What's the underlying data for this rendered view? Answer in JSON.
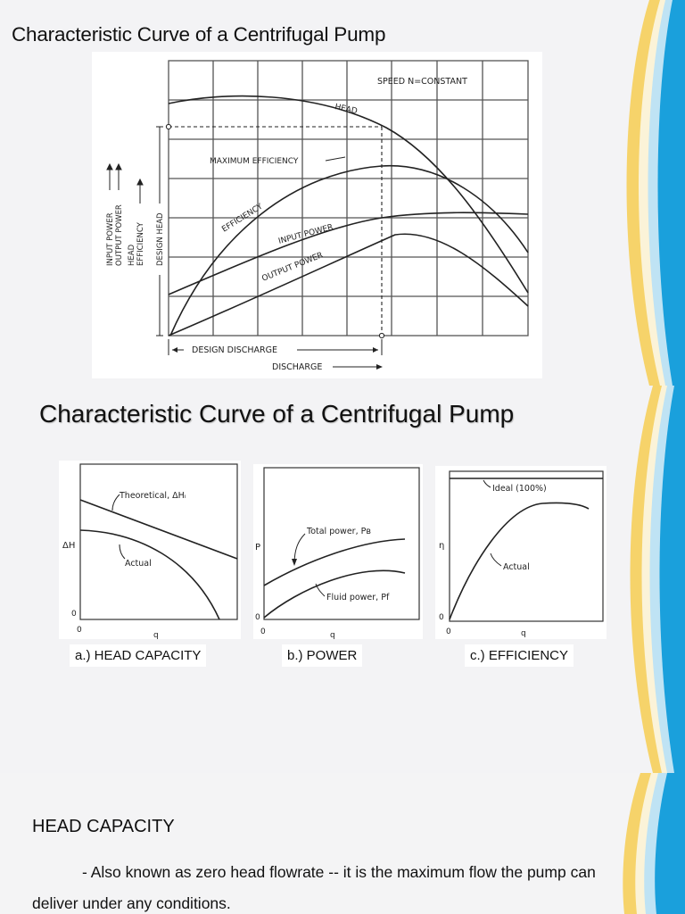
{
  "slide1": {
    "title": "Characteristic Curve of a Centrifugal Pump",
    "figure": {
      "speed_note": "SPEED  N=CONSTANT",
      "curve_labels": {
        "head": "HEAD",
        "max_efficiency": "MAXIMUM  EFFICIENCY",
        "efficiency": "EFFICIENCY",
        "input_power": "INPUT  POWER",
        "output_power": "OUTPUT  POWER"
      },
      "axis_labels": [
        "INPUT  POWER",
        "OUTPUT  POWER",
        "HEAD",
        "EFFICIENCY",
        "DESIGN  HEAD"
      ],
      "design_discharge": "DESIGN  DISCHARGE",
      "discharge": "DISCHARGE"
    }
  },
  "slide2": {
    "title": "Characteristic Curve of a Centrifugal Pump",
    "panels": [
      {
        "caption": "a.) HEAD CAPACITY",
        "ylabel": "ΔH",
        "xlabel": "q",
        "zero": "0",
        "origin": "0",
        "labels": [
          "Theoretical, ΔHᵢ",
          "Actual"
        ]
      },
      {
        "caption": "b.) POWER",
        "ylabel": "P",
        "xlabel": "q",
        "zero": "0",
        "origin": "0",
        "labels": [
          "Total power, Pв",
          "Fluid power, Pf"
        ]
      },
      {
        "caption": "c.) EFFICIENCY",
        "ylabel": "η",
        "xlabel": "q",
        "zero": "0",
        "origin": "0",
        "labels": [
          "Ideal (100%)",
          "Actual"
        ]
      }
    ]
  },
  "slide3": {
    "heading": "HEAD CAPACITY",
    "paragraph": "- Also known as zero head flowrate -- it is the maximum flow the pump can deliver under any conditions."
  },
  "colors": {
    "accent_blue": "#1aa0dc",
    "accent_gold": "#f2c23a",
    "text": "#111111"
  }
}
